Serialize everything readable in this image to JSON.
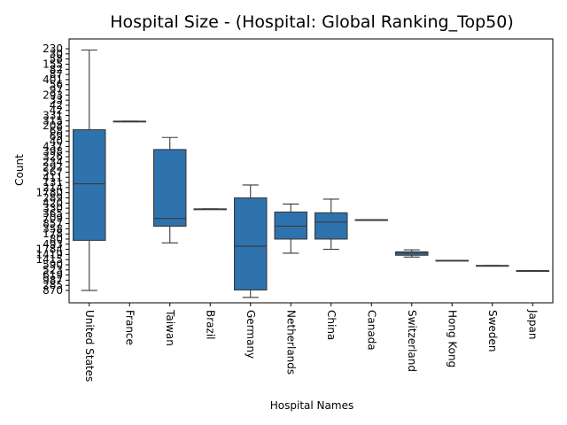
{
  "chart_data": {
    "type": "box",
    "title": "Hospital Size - (Hospital: Global Ranking_Top50)",
    "xlabel": "Hospital Names",
    "ylabel": "Count",
    "y_categorical_ticks": [
      "230",
      "30",
      "58",
      "155",
      "82",
      "87",
      "401",
      "56",
      "97",
      "293",
      "33",
      "42",
      "42",
      "331",
      "315",
      "208",
      "68",
      "69",
      "40",
      "437",
      "398",
      "326",
      "234",
      "292",
      "567",
      "411",
      "131",
      "214",
      "1780",
      "289",
      "420",
      "330",
      "365",
      "709",
      "857",
      "358",
      "178",
      "80",
      "493",
      "1784",
      "1419",
      "1415",
      "590",
      "523",
      "619",
      "987",
      "285",
      "870"
    ],
    "categories": [
      "United States",
      "France",
      "Taiwan",
      "Brazil",
      "Germany",
      "Netherlands",
      "China",
      "Canada",
      "Switzerland",
      "Hong Kong",
      "Sweden",
      "Japan"
    ],
    "boxes": [
      {
        "category": "United States",
        "whisker_low": 0.0,
        "q1": 9.75,
        "median": 20.75,
        "q3": 31.25,
        "whisker_high": 46.75
      },
      {
        "category": "France",
        "whisker_low": 32.9,
        "q1": 32.9,
        "median": 32.9,
        "q3": 32.9,
        "whisker_high": 32.9
      },
      {
        "category": "Taiwan",
        "whisker_low": 9.25,
        "q1": 12.5,
        "median": 14.0,
        "q3": 27.4,
        "whisker_high": 29.75
      },
      {
        "category": "Brazil",
        "whisker_low": 15.85,
        "q1": 15.85,
        "median": 15.85,
        "q3": 15.85,
        "whisker_high": 15.85
      },
      {
        "category": "Germany",
        "whisker_low": -1.35,
        "q1": 0.1,
        "median": 8.6,
        "q3": 18.0,
        "whisker_high": 20.5
      },
      {
        "category": "Netherlands",
        "whisker_low": 7.25,
        "q1": 10.0,
        "median": 12.5,
        "q3": 15.25,
        "whisker_high": 16.8
      },
      {
        "category": "China",
        "whisker_low": 8.0,
        "q1": 10.0,
        "median": 13.3,
        "q3": 15.1,
        "whisker_high": 17.75
      },
      {
        "category": "Canada",
        "whisker_low": 13.75,
        "q1": 13.75,
        "median": 13.75,
        "q3": 13.75,
        "whisker_high": 13.75
      },
      {
        "category": "Switzerland",
        "whisker_low": 6.5,
        "q1": 6.85,
        "median": 7.25,
        "q3": 7.5,
        "whisker_high": 7.9
      },
      {
        "category": "Hong Kong",
        "whisker_low": 5.85,
        "q1": 5.85,
        "median": 5.85,
        "q3": 5.85,
        "whisker_high": 5.85
      },
      {
        "category": "Sweden",
        "whisker_low": 4.85,
        "q1": 4.85,
        "median": 4.85,
        "q3": 4.85,
        "whisker_high": 4.85
      },
      {
        "category": "Japan",
        "whisker_low": 3.85,
        "q1": 3.85,
        "median": 3.85,
        "q3": 3.85,
        "whisker_high": 3.85
      }
    ],
    "ylim": [
      -2.4,
      48.9
    ],
    "grid": false,
    "legend": "none",
    "box_color": "#2e72ae",
    "line_color": "#3a3a3a"
  }
}
